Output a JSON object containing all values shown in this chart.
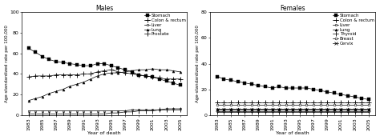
{
  "years": [
    1983,
    1984,
    1985,
    1986,
    1987,
    1988,
    1989,
    1990,
    1991,
    1992,
    1993,
    1994,
    1995,
    1996,
    1997,
    1998,
    1999,
    2000,
    2001,
    2002,
    2003,
    2004,
    2005
  ],
  "males_stomach": [
    65,
    61,
    57,
    54,
    52,
    51,
    50,
    49,
    48,
    48,
    50,
    50,
    48,
    46,
    44,
    42,
    39,
    38,
    37,
    35,
    33,
    31,
    29
  ],
  "males_colon": [
    37,
    38,
    38,
    38,
    39,
    39,
    39,
    39,
    40,
    40,
    42,
    43,
    44,
    42,
    41,
    40,
    39,
    38,
    37,
    36,
    35,
    35,
    35
  ],
  "males_liver": [
    4,
    4,
    4,
    4,
    4,
    4,
    4,
    4,
    4,
    4,
    4,
    4,
    4,
    4,
    4,
    5,
    5,
    5,
    5,
    5,
    6,
    6,
    6
  ],
  "males_lung": [
    14,
    16,
    18,
    21,
    23,
    25,
    28,
    30,
    32,
    35,
    38,
    40,
    41,
    41,
    42,
    43,
    44,
    44,
    45,
    44,
    44,
    43,
    42
  ],
  "males_prostate": [
    1,
    1,
    1,
    1,
    1,
    1,
    1,
    1,
    1,
    1,
    1,
    1,
    2,
    2,
    3,
    3,
    4,
    4,
    4,
    5,
    5,
    5,
    5
  ],
  "females_stomach": [
    30,
    28,
    27,
    26,
    25,
    24,
    23,
    22,
    21,
    22,
    21,
    21,
    21,
    21,
    20,
    19,
    18,
    17,
    16,
    15,
    14,
    13,
    12
  ],
  "females_colon": [
    10,
    10,
    10,
    10,
    10,
    10,
    10,
    10,
    10,
    10,
    10,
    10,
    10,
    10,
    10,
    10,
    10,
    10,
    10,
    10,
    10,
    10,
    10
  ],
  "females_liver": [
    3,
    3,
    3,
    3,
    3,
    3,
    3,
    3,
    3,
    3,
    3,
    3,
    3,
    3,
    3,
    3,
    3,
    3,
    3,
    3,
    3,
    3,
    3
  ],
  "females_lung": [
    5,
    5,
    5,
    5,
    5,
    5,
    5,
    5,
    5,
    5,
    5,
    5,
    5,
    5,
    5,
    5,
    5,
    5,
    5,
    5,
    5,
    5,
    5
  ],
  "females_thyroid": [
    2,
    2,
    2,
    2,
    2,
    2,
    2,
    2,
    2,
    2,
    2,
    2,
    2,
    2,
    2,
    2,
    2,
    2,
    2,
    2,
    2,
    2,
    2
  ],
  "females_breast": [
    8,
    8,
    8,
    8,
    8,
    8,
    8,
    8,
    8,
    8,
    8,
    8,
    8,
    8,
    8,
    8,
    8,
    8,
    8,
    8,
    8,
    8,
    8
  ],
  "females_cervix": [
    4,
    4,
    4,
    4,
    4,
    4,
    4,
    4,
    4,
    4,
    4,
    4,
    4,
    4,
    4,
    4,
    4,
    4,
    4,
    4,
    4,
    4,
    4
  ],
  "male_ylim": [
    0,
    100
  ],
  "female_ylim": [
    0,
    80
  ],
  "male_yticks": [
    0,
    20,
    40,
    60,
    80,
    100
  ],
  "female_yticks": [
    0,
    20,
    40,
    60,
    80
  ],
  "xticks": [
    1983,
    1985,
    1987,
    1989,
    1991,
    1993,
    1995,
    1997,
    1999,
    2001,
    2003,
    2005
  ],
  "title_males": "Males",
  "title_females": "Females",
  "xlabel": "Year of death",
  "ylabel": "Age-standardized rate per 100,000",
  "bg_color": "#ffffff"
}
